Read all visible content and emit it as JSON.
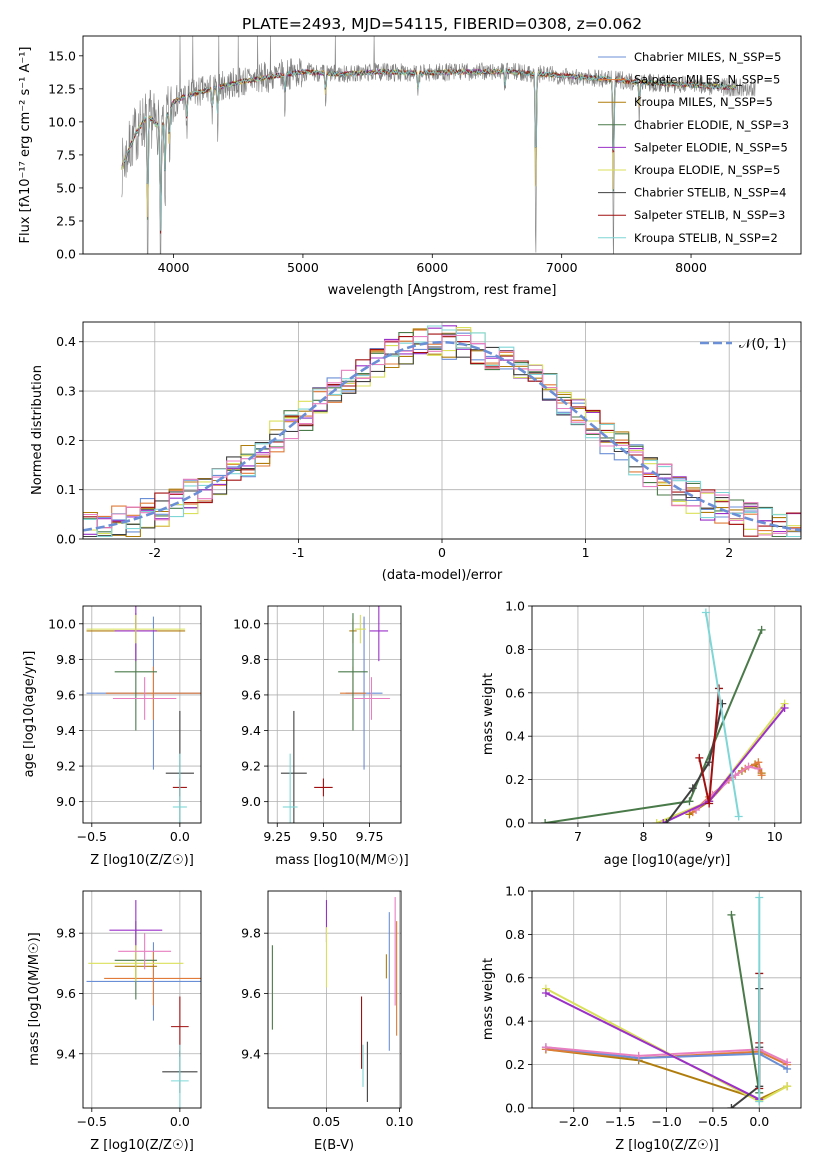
{
  "figure": {
    "title": "PLATE=2493, MJD=54115, FIBERID=0308, z=0.062"
  },
  "colors": {
    "Chabrier MILES": "#6b8fd6",
    "Salpeter MILES": "#e07b39",
    "Kroupa MILES": "#b07d0c",
    "Chabrier ELODIE": "#4a7a4a",
    "Salpeter ELODIE": "#9b30c8",
    "Kroupa ELODIE": "#d9e05a",
    "Chabrier STELIB": "#404040",
    "Salpeter STELIB": "#a01010",
    "Kroupa STELIB": "#7fd6d6",
    "pink": "#e87fc0",
    "data": "#808080",
    "normal": "#6b8fd6"
  },
  "chart_data": [
    {
      "id": "spectrum",
      "type": "line",
      "title": "PLATE=2493, MJD=54115, FIBERID=0308, z=0.062",
      "xlabel": "wavelength [Angstrom, rest frame]",
      "ylabel": "Flux [fλ10⁻¹⁷ erg cm⁻² s⁻¹ A⁻¹]",
      "xlim": [
        3300,
        8850
      ],
      "ylim": [
        0,
        16.5
      ],
      "xticks": [
        4000,
        5000,
        6000,
        7000,
        8000
      ],
      "yticks": [
        0.0,
        2.5,
        5.0,
        7.5,
        10.0,
        12.5,
        15.0
      ],
      "ytick_labels": [
        "0.0",
        "2.5",
        "5.0",
        "7.5",
        "10.0",
        "12.5",
        "15.0"
      ],
      "legend": {
        "position": "right",
        "entries": [
          "Chabrier MILES, N_SSP=5",
          "Salpeter MILES, N_SSP=5",
          "Kroupa MILES, N_SSP=5",
          "Chabrier ELODIE, N_SSP=3",
          "Salpeter ELODIE, N_SSP=5",
          "Kroupa ELODIE, N_SSP=5",
          "Chabrier STELIB, N_SSP=4",
          "Salpeter STELIB, N_SSP=3",
          "Kroupa STELIB, N_SSP=2"
        ]
      },
      "continuum": [
        [
          3600,
          6.5
        ],
        [
          3700,
          9.0
        ],
        [
          3800,
          10.5
        ],
        [
          3900,
          9.5
        ],
        [
          4000,
          11.5
        ],
        [
          4100,
          12.0
        ],
        [
          4300,
          12.5
        ],
        [
          4500,
          13.0
        ],
        [
          4800,
          13.5
        ],
        [
          5000,
          13.8
        ],
        [
          5300,
          13.6
        ],
        [
          5600,
          13.8
        ],
        [
          5900,
          13.7
        ],
        [
          6300,
          13.8
        ],
        [
          6600,
          13.8
        ],
        [
          7000,
          13.5
        ],
        [
          7300,
          13.3
        ],
        [
          7600,
          13.0
        ],
        [
          8000,
          12.8
        ],
        [
          8300,
          12.6
        ],
        [
          8500,
          12.6
        ]
      ],
      "absorptions": [
        [
          3933,
          -6.5
        ],
        [
          3968,
          -4.0
        ],
        [
          4102,
          -3.0
        ],
        [
          4300,
          -2.5
        ],
        [
          4340,
          -3.0
        ],
        [
          4861,
          -2.5
        ],
        [
          5175,
          -2.5
        ],
        [
          5890,
          -2.0
        ],
        [
          6563,
          -1.5
        ],
        [
          3800,
          -13.0
        ],
        [
          3900,
          -13.0
        ],
        [
          6800,
          -14.0
        ],
        [
          7400,
          -14.0
        ],
        [
          7600,
          -3.0
        ]
      ],
      "spikes": [
        3500,
        4050,
        4150,
        4350,
        4500,
        4650,
        4750,
        5250,
        5550
      ]
    },
    {
      "id": "residuals",
      "type": "line",
      "xlabel": "(data-model)/error",
      "ylabel": "Normed distribution",
      "xlim": [
        -2.5,
        2.5
      ],
      "ylim": [
        0,
        0.44
      ],
      "xticks": [
        -2,
        -1,
        0,
        1,
        2
      ],
      "yticks": [
        0.0,
        0.1,
        0.2,
        0.3,
        0.4
      ],
      "ytick_labels": [
        "0.0",
        "0.1",
        "0.2",
        "0.3",
        "0.4"
      ],
      "bin_width": 0.1,
      "legend": {
        "position": "top-right",
        "entries": [
          "𝒩(0, 1)"
        ]
      }
    },
    {
      "id": "age_vs_Z",
      "type": "scatter",
      "xlabel": "Z [log10(Z/Z☉)]",
      "ylabel": "age  [log10(age/yr)]",
      "xlim": [
        -0.55,
        0.12
      ],
      "ylim": [
        8.88,
        10.1
      ],
      "xticks": [
        -0.5,
        0.0
      ],
      "xtick_labels": [
        "−0.5",
        "0.0"
      ],
      "yticks": [
        9.0,
        9.2,
        9.4,
        9.6,
        9.8,
        10.0
      ],
      "ytick_labels": [
        "9.0",
        "9.2",
        "9.4",
        "9.6",
        "9.8",
        "10.0"
      ],
      "points": [
        {
          "c": "Chabrier MILES",
          "x": -0.15,
          "y": 9.61,
          "xerr": 0.38,
          "yerr": 0.43
        },
        {
          "c": "Salpeter MILES",
          "x": -0.15,
          "y": 9.61,
          "xerr": 0.27,
          "yerr": 0.15
        },
        {
          "c": "Kroupa MILES",
          "x": -0.25,
          "y": 9.96,
          "xerr": 0.28,
          "yerr": 0.07
        },
        {
          "c": "Chabrier ELODIE",
          "x": -0.25,
          "y": 9.73,
          "xerr": 0.12,
          "yerr": 0.33
        },
        {
          "c": "Salpeter ELODIE",
          "x": -0.25,
          "y": 9.96,
          "xerr": 0.12,
          "yerr": 0.17
        },
        {
          "c": "Kroupa ELODIE",
          "x": -0.25,
          "y": 9.97,
          "xerr": 0.28,
          "yerr": 0.08
        },
        {
          "c": "Chabrier STELIB",
          "x": 0.0,
          "y": 9.16,
          "xerr": 0.08,
          "yerr": 0.35
        },
        {
          "c": "Salpeter STELIB",
          "x": 0.0,
          "y": 9.08,
          "xerr": 0.04,
          "yerr": 0.05
        },
        {
          "c": "Kroupa STELIB",
          "x": 0.0,
          "y": 8.97,
          "xerr": 0.04,
          "yerr": 0.3
        },
        {
          "c": "pink",
          "x": -0.2,
          "y": 9.58,
          "xerr": 0.18,
          "yerr": 0.12
        }
      ]
    },
    {
      "id": "age_vs_mass",
      "type": "scatter",
      "xlabel": "mass [log10(M/M☉)]",
      "ylabel": "",
      "xlim": [
        9.2,
        9.92
      ],
      "ylim": [
        8.88,
        10.1
      ],
      "xticks": [
        9.25,
        9.5,
        9.75
      ],
      "xtick_labels": [
        "9.25",
        "9.50",
        "9.75"
      ],
      "yticks": [
        9.0,
        9.2,
        9.4,
        9.6,
        9.8,
        10.0
      ],
      "ytick_labels": [
        "9.0",
        "9.2",
        "9.4",
        "9.6",
        "9.8",
        "10.0"
      ],
      "points": [
        {
          "c": "Chabrier MILES",
          "x": 9.72,
          "y": 9.61,
          "xerr": 0.1,
          "yerr": 0.43
        },
        {
          "c": "Salpeter MILES",
          "x": 9.66,
          "y": 9.61,
          "xerr": 0.07,
          "yerr": 0.15
        },
        {
          "c": "Kroupa MILES",
          "x": 9.66,
          "y": 9.96,
          "xerr": 0.02,
          "yerr": 0.07
        },
        {
          "c": "Chabrier ELODIE",
          "x": 9.66,
          "y": 9.73,
          "xerr": 0.08,
          "yerr": 0.33
        },
        {
          "c": "Salpeter ELODIE",
          "x": 9.8,
          "y": 9.96,
          "xerr": 0.05,
          "yerr": 0.17
        },
        {
          "c": "Kroupa ELODIE",
          "x": 9.7,
          "y": 9.97,
          "xerr": 0.03,
          "yerr": 0.08
        },
        {
          "c": "Chabrier STELIB",
          "x": 9.34,
          "y": 9.16,
          "xerr": 0.07,
          "yerr": 0.35
        },
        {
          "c": "Salpeter STELIB",
          "x": 9.5,
          "y": 9.08,
          "xerr": 0.05,
          "yerr": 0.05
        },
        {
          "c": "Kroupa STELIB",
          "x": 9.32,
          "y": 8.97,
          "xerr": 0.04,
          "yerr": 0.3
        },
        {
          "c": "pink",
          "x": 9.76,
          "y": 9.58,
          "xerr": 0.1,
          "yerr": 0.12
        }
      ]
    },
    {
      "id": "weight_vs_age",
      "type": "line",
      "xlabel": "age  [log10(age/yr)]",
      "ylabel": "mass weight",
      "xlim": [
        6.3,
        10.4
      ],
      "ylim": [
        0,
        1.0
      ],
      "xticks": [
        7,
        8,
        9,
        10
      ],
      "yticks": [
        0.0,
        0.2,
        0.4,
        0.6,
        0.8,
        1.0
      ],
      "ytick_labels": [
        "0.0",
        "0.2",
        "0.4",
        "0.6",
        "0.8",
        "1.0"
      ],
      "series": [
        {
          "c": "Kroupa MILES",
          "x": [
            8.7,
            9.0,
            9.3,
            9.5,
            9.7,
            9.8
          ],
          "y": [
            0.04,
            0.1,
            0.2,
            0.24,
            0.27,
            0.23
          ]
        },
        {
          "c": "Salpeter MILES",
          "x": [
            8.75,
            9.0,
            9.35,
            9.55,
            9.75,
            9.8
          ],
          "y": [
            0.05,
            0.12,
            0.21,
            0.25,
            0.28,
            0.22
          ]
        },
        {
          "c": "pink",
          "x": [
            8.8,
            9.05,
            9.4,
            9.6,
            9.75
          ],
          "y": [
            0.06,
            0.13,
            0.22,
            0.26,
            0.25
          ]
        },
        {
          "c": "Chabrier ELODIE",
          "x": [
            6.5,
            8.7,
            9.8
          ],
          "y": [
            0.0,
            0.1,
            0.89
          ]
        },
        {
          "c": "Kroupa ELODIE",
          "x": [
            8.2,
            9.0,
            10.15
          ],
          "y": [
            0.0,
            0.1,
            0.55
          ]
        },
        {
          "c": "Salpeter ELODIE",
          "x": [
            8.3,
            9.0,
            10.15
          ],
          "y": [
            0.0,
            0.1,
            0.53
          ]
        },
        {
          "c": "Chabrier STELIB",
          "x": [
            8.35,
            8.75,
            9.0,
            9.2
          ],
          "y": [
            0.0,
            0.16,
            0.28,
            0.55
          ]
        },
        {
          "c": "Salpeter STELIB",
          "x": [
            8.85,
            9.0,
            9.15
          ],
          "y": [
            0.3,
            0.09,
            0.62
          ]
        },
        {
          "c": "Kroupa STELIB",
          "x": [
            8.95,
            9.45
          ],
          "y": [
            0.97,
            0.03
          ]
        }
      ]
    },
    {
      "id": "mass_vs_Z",
      "type": "scatter",
      "xlabel": "Z [log10(Z/Z☉)]",
      "ylabel": "mass [log10(M/M☉)]",
      "xlim": [
        -0.55,
        0.12
      ],
      "ylim": [
        9.22,
        9.94
      ],
      "xticks": [
        -0.5,
        0.0
      ],
      "xtick_labels": [
        "−0.5",
        "0.0"
      ],
      "yticks": [
        9.4,
        9.6,
        9.8
      ],
      "ytick_labels": [
        "9.4",
        "9.6",
        "9.8"
      ],
      "points": [
        {
          "c": "Chabrier MILES",
          "x": -0.15,
          "y": 9.64,
          "xerr": 0.38,
          "yerr": 0.13
        },
        {
          "c": "Salpeter MILES",
          "x": -0.15,
          "y": 9.65,
          "xerr": 0.28,
          "yerr": 0.09
        },
        {
          "c": "Kroupa MILES",
          "x": -0.25,
          "y": 9.69,
          "xerr": 0.12,
          "yerr": 0.04
        },
        {
          "c": "Chabrier ELODIE",
          "x": -0.25,
          "y": 9.71,
          "xerr": 0.12,
          "yerr": 0.13
        },
        {
          "c": "Salpeter ELODIE",
          "x": -0.25,
          "y": 9.81,
          "xerr": 0.15,
          "yerr": 0.1
        },
        {
          "c": "Kroupa ELODIE",
          "x": -0.25,
          "y": 9.7,
          "xerr": 0.27,
          "yerr": 0.06
        },
        {
          "c": "Chabrier STELIB",
          "x": 0.0,
          "y": 9.34,
          "xerr": 0.1,
          "yerr": 0.07
        },
        {
          "c": "Salpeter STELIB",
          "x": 0.0,
          "y": 9.49,
          "xerr": 0.05,
          "yerr": 0.1
        },
        {
          "c": "Kroupa STELIB",
          "x": 0.0,
          "y": 9.31,
          "xerr": 0.05,
          "yerr": 0.12
        },
        {
          "c": "pink",
          "x": -0.2,
          "y": 9.74,
          "xerr": 0.15,
          "yerr": 0.06
        }
      ]
    },
    {
      "id": "mass_vs_EBV",
      "type": "scatter",
      "xlabel": "E(B-V)",
      "ylabel": "",
      "xlim": [
        0.01,
        0.101
      ],
      "ylim": [
        9.22,
        9.94
      ],
      "xticks": [
        0.05,
        0.1
      ],
      "xtick_labels": [
        "0.05",
        "0.10"
      ],
      "yticks": [
        9.4,
        9.6,
        9.8
      ],
      "ytick_labels": [
        "9.4",
        "9.6",
        "9.8"
      ],
      "points": [
        {
          "c": "Chabrier MILES",
          "x": 0.093,
          "y": 9.64,
          "xerr": 0.0,
          "yerr": 0.23
        },
        {
          "c": "Salpeter MILES",
          "x": 0.098,
          "y": 9.65,
          "xerr": 0.0,
          "yerr": 0.19
        },
        {
          "c": "Kroupa MILES",
          "x": 0.091,
          "y": 9.69,
          "xerr": 0.0,
          "yerr": 0.04
        },
        {
          "c": "Chabrier ELODIE",
          "x": 0.013,
          "y": 9.62,
          "xerr": 0.0,
          "yerr": 0.14
        },
        {
          "c": "Salpeter ELODIE",
          "x": 0.05,
          "y": 9.84,
          "xerr": 0.0,
          "yerr": 0.07
        },
        {
          "c": "Kroupa ELODIE",
          "x": 0.05,
          "y": 9.72,
          "xerr": 0.0,
          "yerr": 0.1
        },
        {
          "c": "Chabrier STELIB",
          "x": 0.078,
          "y": 9.34,
          "xerr": 0.0,
          "yerr": 0.1
        },
        {
          "c": "Salpeter STELIB",
          "x": 0.074,
          "y": 9.47,
          "xerr": 0.0,
          "yerr": 0.12
        },
        {
          "c": "Kroupa STELIB",
          "x": 0.075,
          "y": 9.36,
          "xerr": 0.0,
          "yerr": 0.07
        },
        {
          "c": "pink",
          "x": 0.097,
          "y": 9.74,
          "xerr": 0.0,
          "yerr": 0.18
        }
      ]
    },
    {
      "id": "weight_vs_Z",
      "type": "line",
      "xlabel": "Z [log10(Z/Z☉)]",
      "ylabel": "mass weight",
      "xlim": [
        -2.45,
        0.45
      ],
      "ylim": [
        0,
        1.0
      ],
      "xticks": [
        -2.0,
        -1.5,
        -1.0,
        -0.5,
        0.0
      ],
      "xtick_labels": [
        "−2.0",
        "−1.5",
        "−1.0",
        "−0.5",
        "0.0"
      ],
      "yticks": [
        0.0,
        0.2,
        0.4,
        0.6,
        0.8,
        1.0
      ],
      "ytick_labels": [
        "0.0",
        "0.2",
        "0.4",
        "0.6",
        "0.8",
        "1.0"
      ],
      "series": [
        {
          "c": "Kroupa MILES",
          "x": [
            -2.3,
            -1.3,
            0.0,
            0.3
          ],
          "y": [
            0.27,
            0.22,
            0.04,
            0.1
          ]
        },
        {
          "c": "Salpeter MILES",
          "x": [
            -2.3,
            -1.3,
            0.0,
            0.3
          ],
          "y": [
            0.27,
            0.23,
            0.26,
            0.2
          ]
        },
        {
          "c": "Chabrier MILES",
          "x": [
            -2.3,
            -1.3,
            0.0,
            0.3
          ],
          "y": [
            0.28,
            0.23,
            0.25,
            0.18
          ]
        },
        {
          "c": "pink",
          "x": [
            -2.3,
            -1.3,
            0.0,
            0.3
          ],
          "y": [
            0.28,
            0.24,
            0.27,
            0.21
          ]
        },
        {
          "c": "Kroupa ELODIE",
          "x": [
            -2.3,
            0.0,
            0.3
          ],
          "y": [
            0.55,
            0.03,
            0.1
          ]
        },
        {
          "c": "Salpeter ELODIE",
          "x": [
            -2.3,
            0.0
          ],
          "y": [
            0.53,
            0.04
          ]
        },
        {
          "c": "Chabrier ELODIE",
          "x": [
            -0.3,
            0.0
          ],
          "y": [
            0.89,
            0.07
          ]
        },
        {
          "c": "Chabrier STELIB",
          "x": [
            -0.3,
            0.0,
            0.0,
            0.0
          ],
          "y": [
            0.0,
            0.1,
            0.28,
            0.55
          ]
        },
        {
          "c": "Salpeter STELIB",
          "x": [
            0.0,
            0.0,
            0.0
          ],
          "y": [
            0.62,
            0.3,
            0.09
          ]
        },
        {
          "c": "Kroupa STELIB",
          "x": [
            0.0,
            0.0
          ],
          "y": [
            0.97,
            0.03
          ]
        }
      ]
    }
  ]
}
